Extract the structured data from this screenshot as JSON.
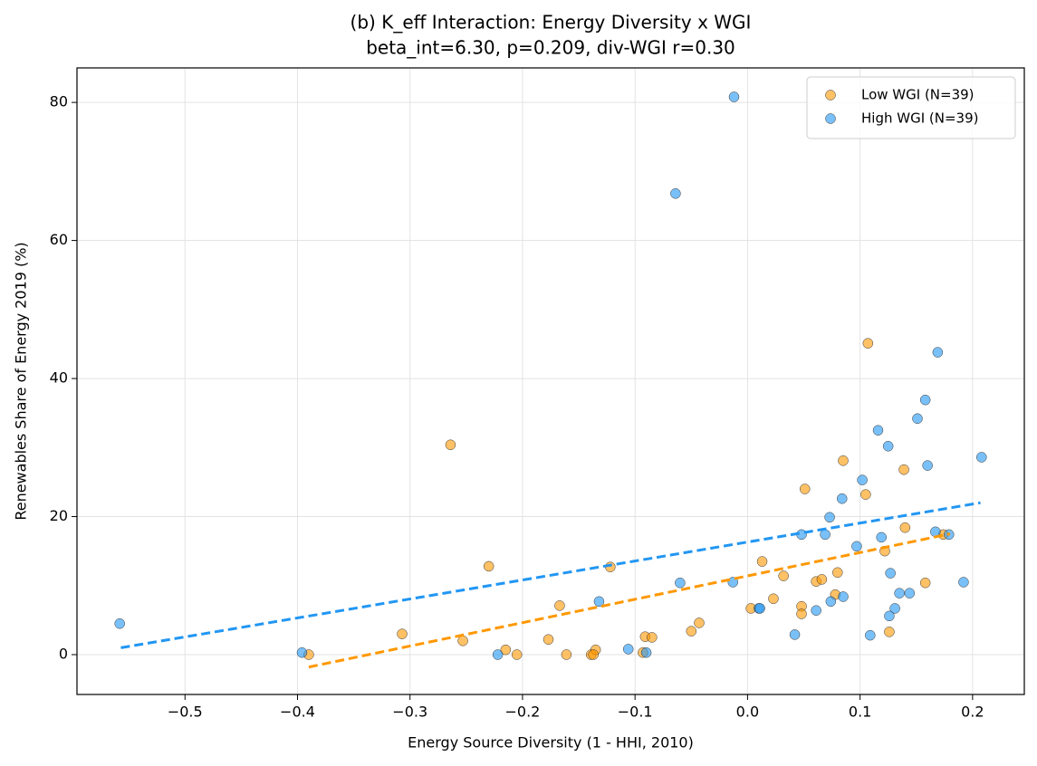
{
  "chart_data": {
    "type": "scatter",
    "title": "(b) K_eff Interaction: Energy Diversity x WGI",
    "subtitle": "beta_int=6.30, p=0.209, div-WGI r=0.30",
    "x_label": "Energy Source Diversity (1 - HHI, 2010)",
    "y_label": "Renewables Share of Energy 2019 (%)",
    "xlim": [
      -0.596,
      0.246
    ],
    "ylim": [
      -5.77,
      85.0
    ],
    "xticks": [
      {
        "value": -0.5,
        "label": "−0.5"
      },
      {
        "value": -0.4,
        "label": "−0.4"
      },
      {
        "value": -0.3,
        "label": "−0.3"
      },
      {
        "value": -0.2,
        "label": "−0.2"
      },
      {
        "value": -0.1,
        "label": "−0.1"
      },
      {
        "value": 0.0,
        "label": "0.0"
      },
      0.1,
      0.2
    ],
    "yticks": [
      0,
      20,
      40,
      60,
      80
    ],
    "grid": true,
    "legend": "upper right",
    "series": [
      {
        "name": "Low WGI (N=39)",
        "color": "#ff9800",
        "x": [
          -0.39,
          -0.307,
          -0.264,
          -0.253,
          -0.23,
          -0.215,
          -0.205,
          -0.177,
          -0.167,
          -0.161,
          -0.139,
          -0.135,
          -0.137,
          -0.122,
          -0.091,
          -0.085,
          -0.093,
          -0.05,
          -0.043,
          0.003,
          0.013,
          0.023,
          0.032,
          0.048,
          0.048,
          0.051,
          0.061,
          0.066,
          0.078,
          0.08,
          0.085,
          0.105,
          0.107,
          0.122,
          0.126,
          0.139,
          0.14,
          0.158,
          0.174
        ],
        "values": [
          0.0,
          3.0,
          30.4,
          2.0,
          12.8,
          0.7,
          0.0,
          2.2,
          7.1,
          0.0,
          0.0,
          0.7,
          0.0,
          12.7,
          2.6,
          2.5,
          0.3,
          3.4,
          4.6,
          6.7,
          13.5,
          8.1,
          11.4,
          7.0,
          5.9,
          24.0,
          10.6,
          10.9,
          8.7,
          11.9,
          28.1,
          23.2,
          45.1,
          15.0,
          3.3,
          26.8,
          18.4,
          10.4,
          17.4
        ]
      },
      {
        "name": "High WGI (N=39)",
        "color": "#2196f3",
        "x": [
          -0.558,
          -0.396,
          -0.222,
          -0.132,
          -0.106,
          -0.09,
          -0.06,
          -0.064,
          -0.012,
          -0.013,
          0.01,
          0.011,
          0.042,
          0.048,
          0.061,
          0.069,
          0.073,
          0.074,
          0.084,
          0.085,
          0.097,
          0.102,
          0.109,
          0.116,
          0.119,
          0.125,
          0.126,
          0.127,
          0.131,
          0.135,
          0.144,
          0.151,
          0.158,
          0.16,
          0.167,
          0.169,
          0.179,
          0.192,
          0.208
        ],
        "values": [
          4.5,
          0.3,
          0.0,
          7.7,
          0.8,
          0.3,
          10.4,
          66.8,
          80.8,
          10.5,
          6.7,
          6.7,
          2.9,
          17.4,
          6.4,
          17.4,
          19.9,
          7.7,
          22.6,
          8.4,
          15.7,
          25.3,
          2.8,
          32.5,
          17.0,
          30.2,
          5.6,
          11.8,
          6.7,
          8.9,
          8.9,
          34.2,
          36.9,
          27.4,
          17.8,
          43.8,
          17.4,
          10.5,
          28.6
        ]
      }
    ],
    "fits": [
      {
        "color": "#ff9800",
        "x": [
          -0.39,
          0.18
        ],
        "y": [
          -1.8,
          17.5
        ]
      },
      {
        "color": "#2196f3",
        "x": [
          -0.557,
          0.207
        ],
        "y": [
          1.0,
          22.0
        ]
      }
    ]
  }
}
